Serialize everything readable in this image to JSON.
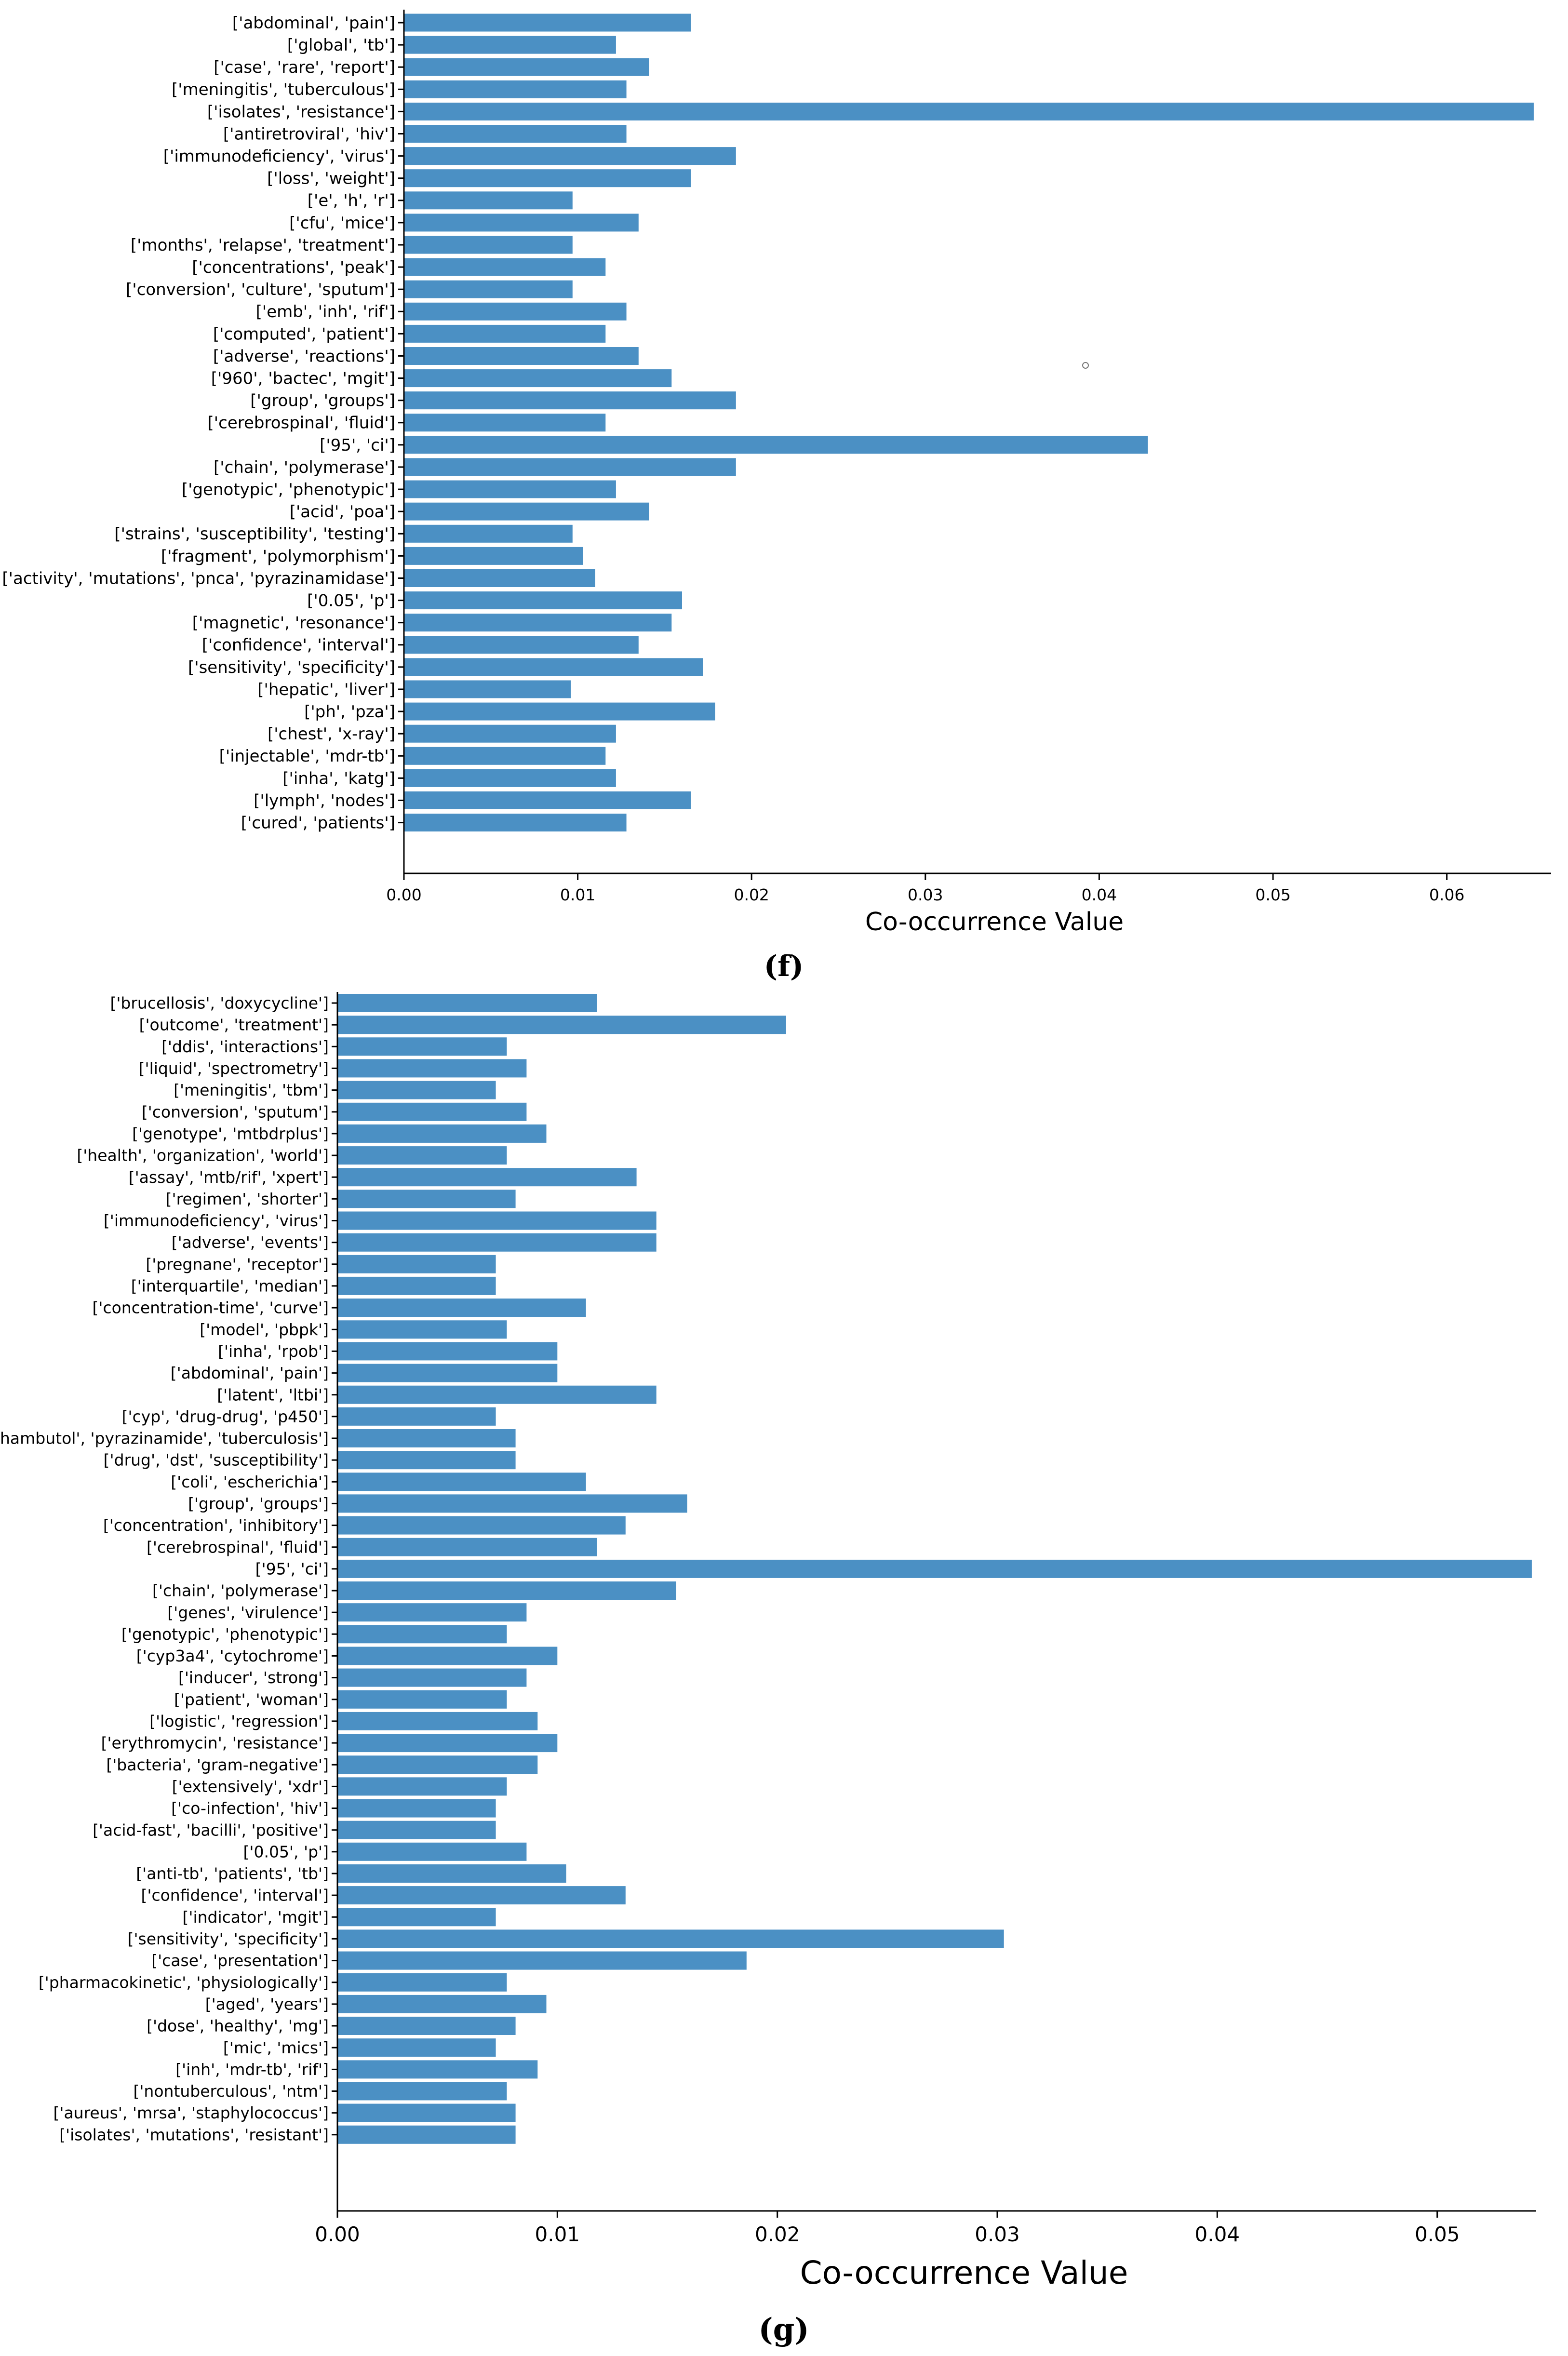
{
  "colors": {
    "bar": "#4b90c4",
    "axis": "#000000",
    "text": "#000000"
  },
  "chart_data": [
    {
      "type": "bar",
      "orientation": "horizontal",
      "panel_label": "(f)",
      "xlabel": "Co-occurrence Value",
      "ylabel": "",
      "xlim": [
        0,
        0.066
      ],
      "x_ticks": [
        0.0,
        0.01,
        0.02,
        0.03,
        0.04,
        0.05,
        0.06
      ],
      "x_tick_labels": [
        "0.00",
        "0.01",
        "0.02",
        "0.03",
        "0.04",
        "0.05",
        "0.06"
      ],
      "categories": [
        "['abdominal', 'pain']",
        "['global', 'tb']",
        "['case', 'rare', 'report']",
        "['meningitis', 'tuberculous']",
        "['isolates', 'resistance']",
        "['antiretroviral', 'hiv']",
        "['immunodeficiency', 'virus']",
        "['loss', 'weight']",
        "['e', 'h', 'r']",
        "['cfu', 'mice']",
        "['months', 'relapse', 'treatment']",
        "['concentrations', 'peak']",
        "['conversion', 'culture', 'sputum']",
        "['emb', 'inh', 'rif']",
        "['computed', 'patient']",
        "['adverse', 'reactions']",
        "['960', 'bactec', 'mgit']",
        "['group', 'groups']",
        "['cerebrospinal', 'fluid']",
        "['95', 'ci']",
        "['chain', 'polymerase']",
        "['genotypic', 'phenotypic']",
        "['acid', 'poa']",
        "['strains', 'susceptibility', 'testing']",
        "['fragment', 'polymorphism']",
        "['activity', 'mutations', 'pnca', 'pyrazinamidase']",
        "['0.05', 'p']",
        "['magnetic', 'resonance']",
        "['confidence', 'interval']",
        "['sensitivity', 'specificity']",
        "['hepatic', 'liver']",
        "['ph', 'pza']",
        "['chest', 'x-ray']",
        "['injectable', 'mdr-tb']",
        "['inha', 'katg']",
        "['lymph', 'nodes']",
        "['cured', 'patients']"
      ],
      "values": [
        0.0165,
        0.0122,
        0.0141,
        0.0128,
        0.065,
        0.0128,
        0.0191,
        0.0165,
        0.0097,
        0.0135,
        0.0097,
        0.0116,
        0.0097,
        0.0128,
        0.0116,
        0.0135,
        0.0154,
        0.0191,
        0.0116,
        0.0428,
        0.0191,
        0.0122,
        0.0141,
        0.0097,
        0.0103,
        0.011,
        0.016,
        0.0154,
        0.0135,
        0.0172,
        0.0096,
        0.0179,
        0.0122,
        0.0116,
        0.0122,
        0.0165,
        0.0128
      ]
    },
    {
      "type": "bar",
      "orientation": "horizontal",
      "panel_label": "(g)",
      "xlabel": "Co-occurrence Value",
      "ylabel": "",
      "xlim": [
        0,
        0.0545
      ],
      "x_ticks": [
        0.0,
        0.01,
        0.02,
        0.03,
        0.04,
        0.05
      ],
      "x_tick_labels": [
        "0.00",
        "0.01",
        "0.02",
        "0.03",
        "0.04",
        "0.05"
      ],
      "categories": [
        "['brucellosis', 'doxycycline']",
        "['outcome', 'treatment']",
        "['ddis', 'interactions']",
        "['liquid', 'spectrometry']",
        "['meningitis', 'tbm']",
        "['conversion', 'sputum']",
        "['genotype', 'mtbdrplus']",
        "['health', 'organization', 'world']",
        "['assay', 'mtb/rif', 'xpert']",
        "['regimen', 'shorter']",
        "['immunodeficiency', 'virus']",
        "['adverse', 'events']",
        "['pregnane', 'receptor']",
        "['interquartile', 'median']",
        "['concentration-time', 'curve']",
        "['model', 'pbpk']",
        "['inha', 'rpob']",
        "['abdominal', 'pain']",
        "['latent', 'ltbi']",
        "['cyp', 'drug-drug', 'p450']",
        "['ethambutol', 'pyrazinamide', 'tuberculosis']",
        "['drug', 'dst', 'susceptibility']",
        "['coli', 'escherichia']",
        "['group', 'groups']",
        "['concentration', 'inhibitory']",
        "['cerebrospinal', 'fluid']",
        "['95', 'ci']",
        "['chain', 'polymerase']",
        "['genes', 'virulence']",
        "['genotypic', 'phenotypic']",
        "['cyp3a4', 'cytochrome']",
        "['inducer', 'strong']",
        "['patient', 'woman']",
        "['logistic', 'regression']",
        "['erythromycin', 'resistance']",
        "['bacteria', 'gram-negative']",
        "['extensively', 'xdr']",
        "['co-infection', 'hiv']",
        "['acid-fast', 'bacilli', 'positive']",
        "['0.05', 'p']",
        "['anti-tb', 'patients', 'tb']",
        "['confidence', 'interval']",
        "['indicator', 'mgit']",
        "['sensitivity', 'specificity']",
        "['case', 'presentation']",
        "['pharmacokinetic', 'physiologically']",
        "['aged', 'years']",
        "['dose', 'healthy', 'mg']",
        "['mic', 'mics']",
        "['inh', 'mdr-tb', 'rif']",
        "['nontuberculous', 'ntm']",
        "['aureus', 'mrsa', 'staphylococcus']",
        "['isolates', 'mutations', 'resistant']"
      ],
      "values": [
        0.0118,
        0.0204,
        0.0077,
        0.0086,
        0.0072,
        0.0086,
        0.0095,
        0.0077,
        0.0136,
        0.0081,
        0.0145,
        0.0145,
        0.0072,
        0.0072,
        0.0113,
        0.0077,
        0.01,
        0.01,
        0.0145,
        0.0072,
        0.0081,
        0.0081,
        0.0113,
        0.0159,
        0.0131,
        0.0118,
        0.0543,
        0.0154,
        0.0086,
        0.0077,
        0.01,
        0.0086,
        0.0077,
        0.0091,
        0.01,
        0.0091,
        0.0077,
        0.0072,
        0.0072,
        0.0086,
        0.0104,
        0.0131,
        0.0072,
        0.0303,
        0.0186,
        0.0077,
        0.0095,
        0.0081,
        0.0072,
        0.0091,
        0.0077,
        0.0081,
        0.0081
      ]
    }
  ]
}
